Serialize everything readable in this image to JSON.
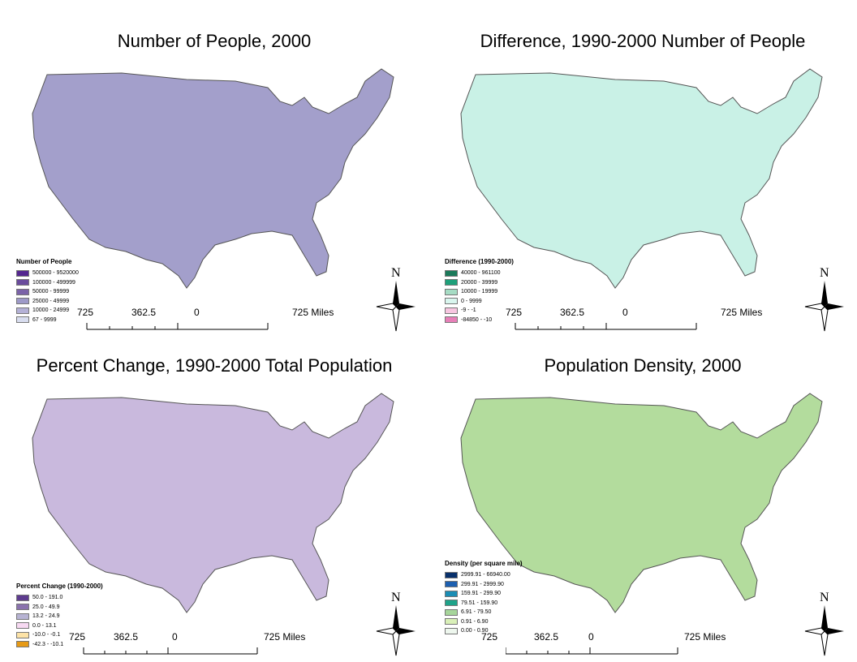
{
  "map_panels": [
    {
      "title": "Number of People, 2000",
      "legend_title": "Number of People",
      "legend": [
        {
          "label": "500000 - 9520000",
          "color": "#54278f"
        },
        {
          "label": "100000 - 499999",
          "color": "#6a4c9c"
        },
        {
          "label": "50000 - 99999",
          "color": "#7b63a8"
        },
        {
          "label": "25000 - 49999",
          "color": "#9e9ac8"
        },
        {
          "label": "10000 - 24999",
          "color": "#b4b1d6"
        },
        {
          "label": "67 - 9999",
          "color": "#d8ddef"
        }
      ],
      "base_fill": "#a39fcb",
      "scale": {
        "left": "725",
        "mid": "362.5",
        "zero": "0",
        "right": "725 Miles"
      },
      "north": "N"
    },
    {
      "title": "Difference, 1990-2000 Number of People",
      "legend_title": "Difference (1990-2000)",
      "legend": [
        {
          "label": "40000 - 961100",
          "color": "#1b7a5a"
        },
        {
          "label": "20000 - 39999",
          "color": "#1fa07a"
        },
        {
          "label": "10000 - 19999",
          "color": "#a6dcc4"
        },
        {
          "label": "0 - 9999",
          "color": "#d9f6ee"
        },
        {
          "label": "-9 - -1",
          "color": "#f7c6e0"
        },
        {
          "label": "-84850 - -10",
          "color": "#e77fb8"
        }
      ],
      "base_fill": "#c9f1e6",
      "scale": {
        "left": "725",
        "mid": "362.5",
        "zero": "0",
        "right": "725 Miles"
      },
      "north": "N"
    },
    {
      "title": "Percent Change, 1990-2000 Total Population",
      "legend_title": "Percent Change (1990-2000)",
      "legend": [
        {
          "label": "50.0 - 191.0",
          "color": "#5e3c8f"
        },
        {
          "label": "25.0 - 49.9",
          "color": "#8a72ad"
        },
        {
          "label": "13.2 - 24.9",
          "color": "#b7b3d3"
        },
        {
          "label": "0.0 - 13.1",
          "color": "#f7d9f2"
        },
        {
          "label": "-10.0 - -0.1",
          "color": "#fde3a7"
        },
        {
          "label": "-42.3 - -10.1",
          "color": "#e69a16"
        }
      ],
      "base_fill": "#c9b9dd",
      "scale": {
        "left": "725",
        "mid": "362.5",
        "zero": "0",
        "right": "725 Miles"
      },
      "north": "N"
    },
    {
      "title": "Population Density, 2000",
      "legend_title": "Density (per square mile)",
      "legend": [
        {
          "label": "2999.91 - 66940.00",
          "color": "#08306b"
        },
        {
          "label": "299.91 - 2999.90",
          "color": "#1c5fb0"
        },
        {
          "label": "159.91 - 299.90",
          "color": "#1b8db4"
        },
        {
          "label": "79.51 - 159.90",
          "color": "#1fa38a"
        },
        {
          "label": "6.91 - 79.50",
          "color": "#a6d59a"
        },
        {
          "label": "0.91 - 6.90",
          "color": "#d9f0b8"
        },
        {
          "label": "0.00 - 0.90",
          "color": "#eef7ee"
        }
      ],
      "base_fill": "#b3dc9d",
      "scale": {
        "left": "725",
        "mid": "362.5",
        "zero": "0",
        "right": "725 Miles"
      },
      "north": "N"
    }
  ]
}
